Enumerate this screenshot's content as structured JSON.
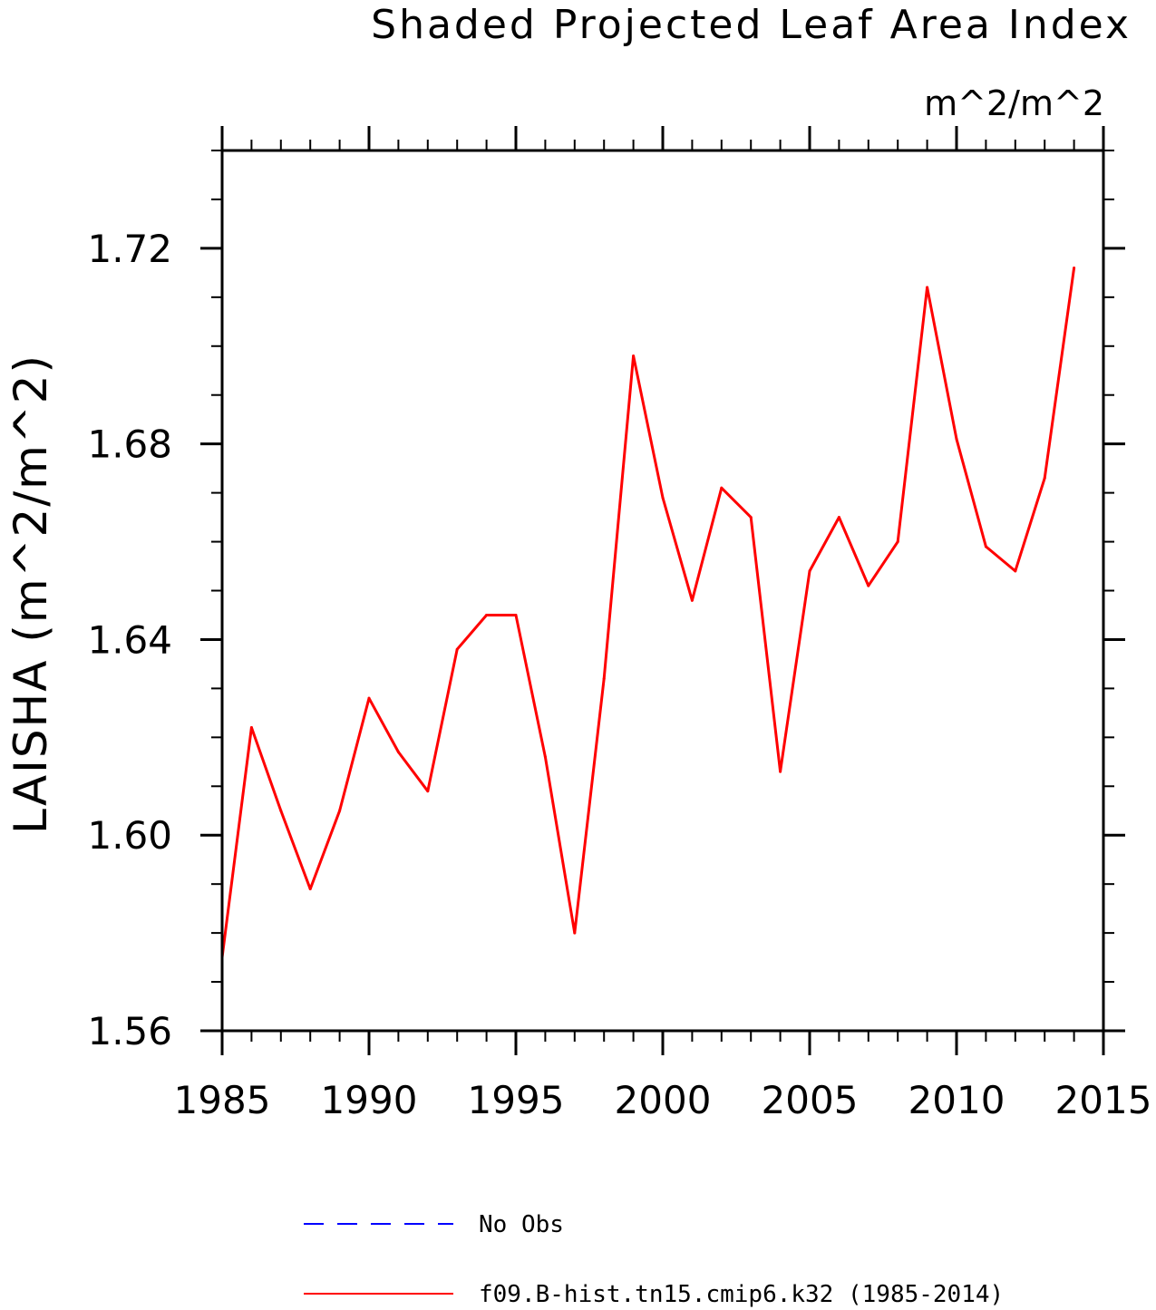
{
  "chart_data": {
    "type": "line",
    "title": "Shaded Projected Leaf Area Index",
    "units": "m^2/m^2",
    "ylabel": "LAISHA    (m^2/m^2)",
    "xlabel": "",
    "xlim": [
      1985,
      2015
    ],
    "ylim": [
      1.56,
      1.74
    ],
    "x_ticks": [
      1985,
      1990,
      1995,
      2000,
      2005,
      2010,
      2015
    ],
    "x_tick_labels": [
      "1985",
      "1990",
      "1995",
      "2000",
      "2005",
      "2010",
      "2015"
    ],
    "y_ticks": [
      1.56,
      1.6,
      1.64,
      1.68,
      1.72
    ],
    "y_tick_labels": [
      "1.56",
      "1.60",
      "1.64",
      "1.68",
      "1.72"
    ],
    "y_minor_step": 0.01,
    "x_minor_step": 1,
    "grid": false,
    "legend_position": "bottom",
    "series": [
      {
        "name": "No Obs",
        "color": "#0000ff",
        "dash": "dashed",
        "x": [],
        "values": []
      },
      {
        "name": "f09.B-hist.tn15.cmip6.k32 (1985-2014)",
        "color": "#ff0000",
        "dash": "solid",
        "x": [
          1985,
          1986,
          1987,
          1988,
          1989,
          1990,
          1991,
          1992,
          1993,
          1994,
          1995,
          1996,
          1997,
          1998,
          1999,
          2000,
          2001,
          2002,
          2003,
          2004,
          2005,
          2006,
          2007,
          2008,
          2009,
          2010,
          2011,
          2012,
          2013,
          2014
        ],
        "values": [
          1.575,
          1.622,
          1.605,
          1.589,
          1.605,
          1.628,
          1.617,
          1.609,
          1.638,
          1.645,
          1.645,
          1.616,
          1.58,
          1.632,
          1.698,
          1.669,
          1.648,
          1.671,
          1.665,
          1.613,
          1.654,
          1.665,
          1.651,
          1.66,
          1.712,
          1.681,
          1.659,
          1.654,
          1.673,
          1.716
        ]
      }
    ]
  }
}
